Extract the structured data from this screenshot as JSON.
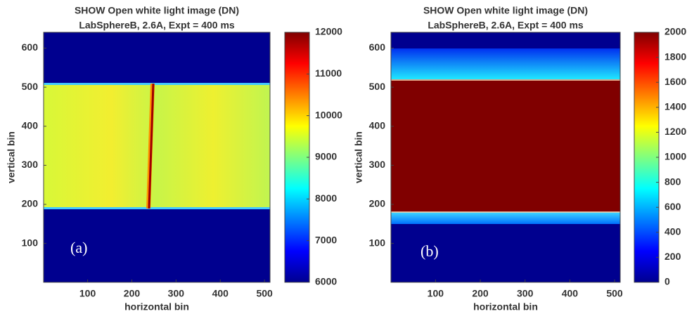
{
  "chart_data": [
    {
      "type": "heatmap",
      "title": "SHOW Open white light image (DN)",
      "subtitle": "LabSphereB, 2.6A, Expt = 400 ms",
      "xlabel": "horizontal bin",
      "ylabel": "vertical bin",
      "xlim": [
        0.5,
        512.5
      ],
      "xticks": [
        100,
        200,
        300,
        400,
        500
      ],
      "ylim": [
        0.5,
        640.5
      ],
      "yticks": [
        100,
        200,
        300,
        400,
        500,
        600
      ],
      "colormap": "jet",
      "clim": [
        6000,
        12000
      ],
      "cticks": [
        6000,
        7000,
        8000,
        9000,
        10000,
        11000,
        12000
      ],
      "annotation": "(a)"
    },
    {
      "type": "heatmap",
      "title": "SHOW Open white light image (DN)",
      "subtitle": "LabSphereB, 2.6A, Expt = 400 ms",
      "xlabel": "horizontal bin",
      "ylabel": "vertical bin",
      "xlim": [
        0.5,
        512.5
      ],
      "xticks": [
        100,
        200,
        300,
        400,
        500
      ],
      "ylim": [
        0.5,
        640.5
      ],
      "yticks": [
        100,
        200,
        300,
        400,
        500,
        600
      ],
      "colormap": "jet",
      "clim": [
        0,
        2000
      ],
      "cticks": [
        0,
        200,
        400,
        600,
        800,
        1000,
        1200,
        1400,
        1600,
        1800,
        2000
      ],
      "annotation": "(b)"
    }
  ]
}
